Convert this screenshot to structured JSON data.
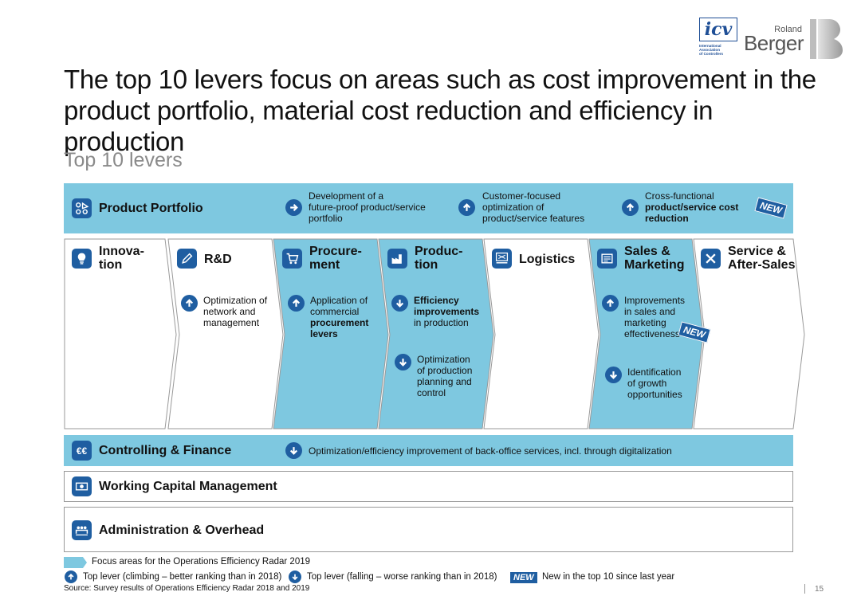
{
  "logos": {
    "icv": {
      "mark": "icv",
      "sub": [
        "International",
        "Association",
        "of Controllers"
      ]
    },
    "rb": {
      "roland": "Roland",
      "berger": "Berger"
    }
  },
  "title": "The top 10 levers focus on areas such as cost improvement in the product portfolio, material cost reduction and efficiency in production",
  "subtitle": "Top 10 levers",
  "product_portfolio": {
    "label": "Product Portfolio",
    "icon": "portfolio-icon",
    "lever1": [
      "Development of a",
      "future-proof product/service",
      "portfolio"
    ],
    "lever2": [
      "Customer-focused",
      "optimization of",
      "product/service features"
    ],
    "lever3": [
      "Cross-functional",
      "product/service cost",
      "reduction"
    ],
    "new": "NEW"
  },
  "value_chain": [
    {
      "label": [
        "Innova-",
        "tion"
      ],
      "icon": "lightbulb-icon",
      "focus": false
    },
    {
      "label": [
        "R&D"
      ],
      "icon": "pen-icon",
      "focus": false
    },
    {
      "label": [
        "Procure-",
        "ment"
      ],
      "icon": "cart-icon",
      "focus": true
    },
    {
      "label": [
        "Produc-",
        "tion"
      ],
      "icon": "factory-icon",
      "focus": true
    },
    {
      "label": [
        "Logistics"
      ],
      "icon": "conveyor-icon",
      "focus": false
    },
    {
      "label": [
        "Sales &",
        "Marketing"
      ],
      "icon": "brochure-icon",
      "focus": true
    },
    {
      "label": [
        "Service &",
        "After-Sales"
      ],
      "icon": "tools-icon",
      "focus": false
    }
  ],
  "levers": {
    "rd": [
      "Optimization of",
      "network and",
      "management"
    ],
    "procurement": [
      "Application of",
      "commercial",
      "procurement",
      "levers"
    ],
    "production1": [
      "Efficiency",
      "improvements",
      "in production"
    ],
    "production2": [
      "Optimization",
      "of production",
      "planning and",
      "control"
    ],
    "sales1": [
      "Improvements",
      "in sales and",
      "marketing",
      "effectiveness"
    ],
    "sales2": [
      "Identification",
      "of growth",
      "opportunities"
    ]
  },
  "controlling": {
    "label": "Controlling & Finance",
    "icon_text": "€€",
    "lever": "Optimization/efficiency improvement of back-office services, incl. through digitalization"
  },
  "working_capital": {
    "label": "Working Capital Management",
    "icon": "money-icon"
  },
  "administration": {
    "label": "Administration & Overhead",
    "icon": "people-icon"
  },
  "legend": {
    "focus": "Focus areas for the Operations Efficiency Radar 2019",
    "up": "Top lever (climbing – better ranking than in 2018)",
    "down": "Top lever (falling – worse ranking than in 2018)",
    "new_badge": "NEW",
    "new": "New in the top 10 since last year"
  },
  "source": "Source: Survey results of Operations Efficiency Radar 2018 and 2019",
  "page_number": "15",
  "colors": {
    "band_blue": "#7ec8e0",
    "icon_blue": "#1f5ea1",
    "text": "#111111"
  }
}
